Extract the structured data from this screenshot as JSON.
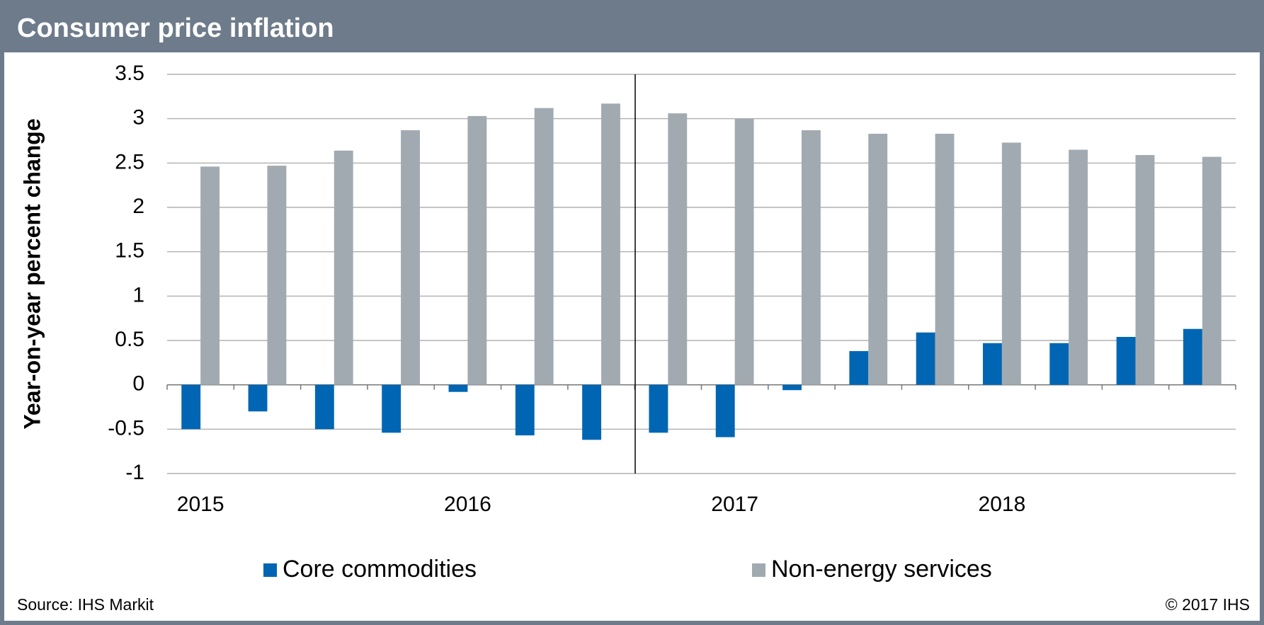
{
  "chart_data": {
    "type": "bar",
    "title": "Consumer price inflation",
    "y_label": "Year-on-year percent change",
    "categories": [
      "2015",
      null,
      null,
      null,
      "2016",
      null,
      null,
      null,
      "2017",
      null,
      null,
      null,
      "2018",
      null,
      null,
      null
    ],
    "series": [
      {
        "name": "Core commodities",
        "color": "#0066b3",
        "values": [
          -0.5,
          -0.3,
          -0.5,
          -0.54,
          -0.08,
          -0.57,
          -0.62,
          -0.54,
          -0.59,
          -0.06,
          0.38,
          0.59,
          0.47,
          0.47,
          0.54,
          0.63
        ]
      },
      {
        "name": "Non-energy services",
        "color": "#a2aab1",
        "values": [
          2.46,
          2.47,
          2.64,
          2.87,
          3.03,
          3.12,
          3.17,
          3.06,
          3.0,
          2.87,
          2.83,
          2.83,
          2.73,
          2.65,
          2.59,
          2.57
        ]
      }
    ],
    "ylim": [
      -1,
      3.5
    ],
    "yticks": [
      -1,
      -0.5,
      0,
      0.5,
      1,
      1.5,
      2,
      2.5,
      3,
      3.5
    ],
    "grid": true,
    "source": "Source: IHS Markit",
    "copyright": "© 2017 IHS"
  }
}
